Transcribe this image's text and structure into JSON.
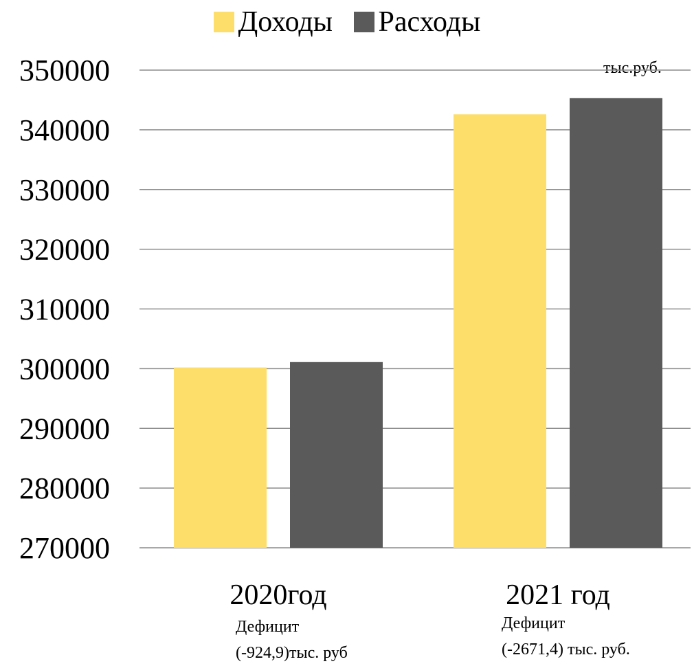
{
  "chart_data": {
    "type": "bar",
    "unit_note": "тыс.руб.",
    "categories": [
      "2020год",
      "2021 год"
    ],
    "series": [
      {
        "name": "Доходы",
        "color": "#FDDE6B",
        "values": [
          300200,
          342600
        ]
      },
      {
        "name": "Расходы",
        "color": "#5A5A5A",
        "values": [
          301100,
          345300
        ]
      }
    ],
    "ylim": [
      270000,
      350000
    ],
    "yticks": [
      270000,
      280000,
      290000,
      300000,
      310000,
      320000,
      330000,
      340000,
      350000
    ],
    "grid": true,
    "legend": "top-center",
    "notes": [
      {
        "line1": "Дефицит",
        "line2": "(-924,9)тыс. руб"
      },
      {
        "line1": "Дефицит",
        "line2": "(-2671,4) тыс. руб."
      }
    ]
  }
}
